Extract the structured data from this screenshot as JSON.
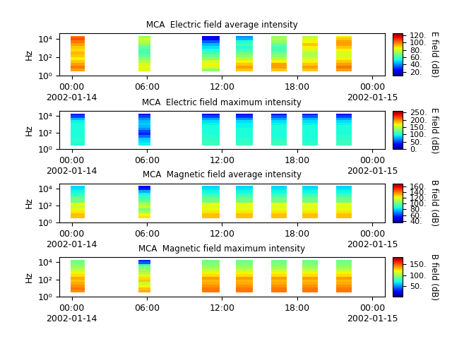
{
  "chart_data": [
    {
      "type": "heatmap",
      "title": "MCA  Electric field average intensity",
      "y_label": "Hz",
      "log": "y",
      "xlim": [
        -1,
        25
      ],
      "ylim": [
        1,
        40000
      ],
      "xticks": [
        {
          "value": 0,
          "label": "00:00\n2002-01-14"
        },
        {
          "value": 6,
          "label": "06:00"
        },
        {
          "value": 12,
          "label": "12:00"
        },
        {
          "value": 18,
          "label": "18:00"
        },
        {
          "value": 24,
          "label": "00:00\n2002-01-15"
        }
      ],
      "yticks": [
        {
          "value": 1,
          "label": "10⁰"
        },
        {
          "value": 100,
          "label": "10²"
        },
        {
          "value": 10000,
          "label": "10⁴"
        }
      ],
      "freq_edges": [
        3,
        6,
        12,
        25,
        50,
        100,
        200,
        400,
        800,
        1600,
        3200,
        6400,
        12800,
        20000
      ],
      "segments": [
        [
          -0.11,
          1.02
        ],
        [
          5.31,
          6.27
        ],
        [
          10.39,
          11.8
        ],
        [
          13.1,
          14.46
        ],
        [
          15.92,
          17.17
        ],
        [
          18.41,
          19.65
        ],
        [
          21.12,
          22.36
        ]
      ],
      "cells": [
        [
          95,
          100,
          95,
          90,
          85,
          90,
          92,
          88,
          90,
          95,
          100,
          105,
          100
        ],
        [
          80,
          85,
          80,
          75,
          70,
          65,
          60,
          60,
          65,
          70,
          75,
          80,
          70
        ],
        [
          70,
          80,
          85,
          80,
          70,
          65,
          60,
          55,
          50,
          45,
          35,
          25,
          20
        ],
        [
          90,
          95,
          90,
          85,
          75,
          70,
          65,
          60,
          55,
          60,
          55,
          45,
          40
        ],
        [
          90,
          95,
          95,
          85,
          75,
          70,
          65,
          60,
          60,
          65,
          70,
          75,
          70
        ],
        [
          90,
          95,
          90,
          85,
          80,
          75,
          75,
          80,
          85,
          90,
          85,
          80,
          75
        ],
        [
          95,
          100,
          95,
          90,
          85,
          80,
          80,
          85,
          90,
          95,
          95,
          90,
          85
        ]
      ],
      "colorbar_label": "E field (dB)",
      "color_range": [
        10,
        125
      ],
      "color_ticks": [
        {
          "value": 20,
          "label": "20."
        },
        {
          "value": 40,
          "label": "40."
        },
        {
          "value": 60,
          "label": "60."
        },
        {
          "value": 80,
          "label": "80."
        },
        {
          "value": 100,
          "label": "100."
        },
        {
          "value": 120,
          "label": "120."
        }
      ]
    },
    {
      "type": "heatmap",
      "title": "MCA  Electric field maximum intensity",
      "y_label": "Hz",
      "log": "y",
      "xlim": [
        -1,
        25
      ],
      "ylim": [
        1,
        40000
      ],
      "xticks": [
        {
          "value": 0,
          "label": "00:00\n2002-01-14"
        },
        {
          "value": 6,
          "label": "06:00"
        },
        {
          "value": 12,
          "label": "12:00"
        },
        {
          "value": 18,
          "label": "18:00"
        },
        {
          "value": 24,
          "label": "00:00\n2002-01-15"
        }
      ],
      "yticks": [
        {
          "value": 1,
          "label": "10⁰"
        },
        {
          "value": 100,
          "label": "10²"
        },
        {
          "value": 10000,
          "label": "10⁴"
        }
      ],
      "freq_edges": [
        3,
        6,
        12,
        25,
        50,
        100,
        200,
        400,
        800,
        1600,
        3200,
        6400,
        12800,
        20000
      ],
      "segments": [
        [
          -0.11,
          1.02
        ],
        [
          5.31,
          6.27
        ],
        [
          10.39,
          11.8
        ],
        [
          13.1,
          14.46
        ],
        [
          15.92,
          17.17
        ],
        [
          18.41,
          19.65
        ],
        [
          21.12,
          22.36
        ]
      ],
      "cells": [
        [
          100,
          105,
          105,
          100,
          100,
          100,
          100,
          100,
          100,
          95,
          80,
          50,
          40
        ],
        [
          95,
          90,
          85,
          60,
          40,
          50,
          70,
          80,
          85,
          80,
          70,
          50,
          30
        ],
        [
          110,
          110,
          105,
          105,
          100,
          100,
          100,
          100,
          95,
          90,
          75,
          50,
          30
        ],
        [
          110,
          105,
          105,
          100,
          100,
          100,
          100,
          95,
          95,
          90,
          70,
          45,
          30
        ],
        [
          110,
          110,
          105,
          100,
          100,
          100,
          100,
          100,
          95,
          90,
          75,
          55,
          35
        ],
        [
          105,
          105,
          100,
          100,
          100,
          100,
          100,
          100,
          95,
          90,
          80,
          55,
          40
        ],
        [
          110,
          110,
          105,
          105,
          100,
          100,
          100,
          100,
          95,
          90,
          75,
          50,
          30
        ]
      ],
      "colorbar_label": "E field (dB)",
      "color_range": [
        0,
        260
      ],
      "color_ticks": [
        {
          "value": 0,
          "label": "0."
        },
        {
          "value": 50,
          "label": "50."
        },
        {
          "value": 100,
          "label": "100."
        },
        {
          "value": 150,
          "label": "150."
        },
        {
          "value": 200,
          "label": "200."
        },
        {
          "value": 250,
          "label": "250."
        }
      ]
    },
    {
      "type": "heatmap",
      "title": "MCA  Magnetic field average intensity",
      "y_label": "Hz",
      "log": "y",
      "xlim": [
        -1,
        25
      ],
      "ylim": [
        1,
        40000
      ],
      "xticks": [
        {
          "value": 0,
          "label": "00:00\n2002-01-14"
        },
        {
          "value": 6,
          "label": "06:00"
        },
        {
          "value": 12,
          "label": "12:00"
        },
        {
          "value": 18,
          "label": "18:00"
        },
        {
          "value": 24,
          "label": "00:00\n2002-01-15"
        }
      ],
      "yticks": [
        {
          "value": 1,
          "label": "10⁰"
        },
        {
          "value": 100,
          "label": "10²"
        },
        {
          "value": 10000,
          "label": "10⁴"
        }
      ],
      "freq_edges": [
        3,
        6,
        12,
        25,
        50,
        100,
        200,
        400,
        800,
        1600,
        3200,
        6400,
        12800,
        20000
      ],
      "segments": [
        [
          -0.11,
          1.02
        ],
        [
          5.31,
          6.27
        ],
        [
          10.39,
          11.8
        ],
        [
          13.1,
          14.46
        ],
        [
          15.92,
          17.17
        ],
        [
          18.41,
          19.65
        ],
        [
          21.12,
          22.36
        ]
      ],
      "cells": [
        [
          130,
          130,
          125,
          120,
          115,
          120,
          100,
          100,
          95,
          90,
          85,
          82,
          80
        ],
        [
          125,
          120,
          110,
          100,
          115,
          110,
          100,
          95,
          90,
          85,
          75,
          55,
          50
        ],
        [
          130,
          130,
          125,
          120,
          118,
          122,
          100,
          100,
          95,
          90,
          85,
          82,
          80
        ],
        [
          130,
          130,
          125,
          120,
          118,
          122,
          100,
          100,
          95,
          90,
          85,
          82,
          80
        ],
        [
          130,
          130,
          125,
          120,
          118,
          122,
          100,
          100,
          95,
          90,
          85,
          82,
          80
        ],
        [
          130,
          130,
          125,
          120,
          118,
          122,
          100,
          100,
          95,
          90,
          85,
          82,
          80
        ],
        [
          130,
          130,
          125,
          120,
          118,
          122,
          100,
          100,
          95,
          90,
          85,
          82,
          80
        ]
      ],
      "colorbar_label": "B field (dB)",
      "color_range": [
        35,
        170
      ],
      "color_ticks": [
        {
          "value": 40,
          "label": "40."
        },
        {
          "value": 60,
          "label": "60."
        },
        {
          "value": 80,
          "label": "80."
        },
        {
          "value": 100,
          "label": "100."
        },
        {
          "value": 120,
          "label": "120."
        },
        {
          "value": 140,
          "label": "140."
        },
        {
          "value": 160,
          "label": "160."
        }
      ]
    },
    {
      "type": "heatmap",
      "title": "MCA  Magnetic field maximum intensity",
      "y_label": "Hz",
      "log": "y",
      "xlim": [
        -1,
        25
      ],
      "ylim": [
        1,
        40000
      ],
      "xticks": [
        {
          "value": 0,
          "label": "00:00\n2002-01-14"
        },
        {
          "value": 6,
          "label": "06:00"
        },
        {
          "value": 12,
          "label": "12:00"
        },
        {
          "value": 18,
          "label": "18:00"
        },
        {
          "value": 24,
          "label": "00:00\n2002-01-15"
        }
      ],
      "yticks": [
        {
          "value": 1,
          "label": "10⁰"
        },
        {
          "value": 100,
          "label": "10²"
        },
        {
          "value": 10000,
          "label": "10⁴"
        }
      ],
      "freq_edges": [
        3,
        6,
        12,
        25,
        50,
        100,
        200,
        400,
        800,
        1600,
        3200,
        6400,
        12800,
        20000
      ],
      "segments": [
        [
          -0.11,
          1.02
        ],
        [
          5.31,
          6.27
        ],
        [
          10.39,
          11.8
        ],
        [
          13.1,
          14.46
        ],
        [
          15.92,
          17.17
        ],
        [
          18.41,
          19.65
        ],
        [
          21.12,
          22.36
        ]
      ],
      "cells": [
        [
          140,
          145,
          140,
          135,
          130,
          135,
          125,
          120,
          110,
          100,
          95,
          92,
          90
        ],
        [
          135,
          130,
          120,
          110,
          130,
          125,
          115,
          105,
          100,
          95,
          80,
          40,
          30
        ],
        [
          145,
          145,
          140,
          135,
          132,
          138,
          125,
          120,
          110,
          100,
          95,
          92,
          90
        ],
        [
          145,
          145,
          140,
          135,
          132,
          138,
          125,
          120,
          110,
          100,
          95,
          92,
          90
        ],
        [
          145,
          145,
          140,
          135,
          132,
          138,
          125,
          120,
          110,
          100,
          95,
          92,
          90
        ],
        [
          145,
          145,
          140,
          135,
          132,
          138,
          125,
          120,
          110,
          100,
          95,
          92,
          90
        ],
        [
          145,
          145,
          140,
          135,
          132,
          138,
          125,
          120,
          110,
          100,
          95,
          92,
          90
        ]
      ],
      "colorbar_label": "B field (dB)",
      "color_range": [
        0,
        185
      ],
      "color_ticks": [
        {
          "value": 50,
          "label": "50."
        },
        {
          "value": 100,
          "label": "100."
        },
        {
          "value": 150,
          "label": "150."
        }
      ]
    }
  ]
}
